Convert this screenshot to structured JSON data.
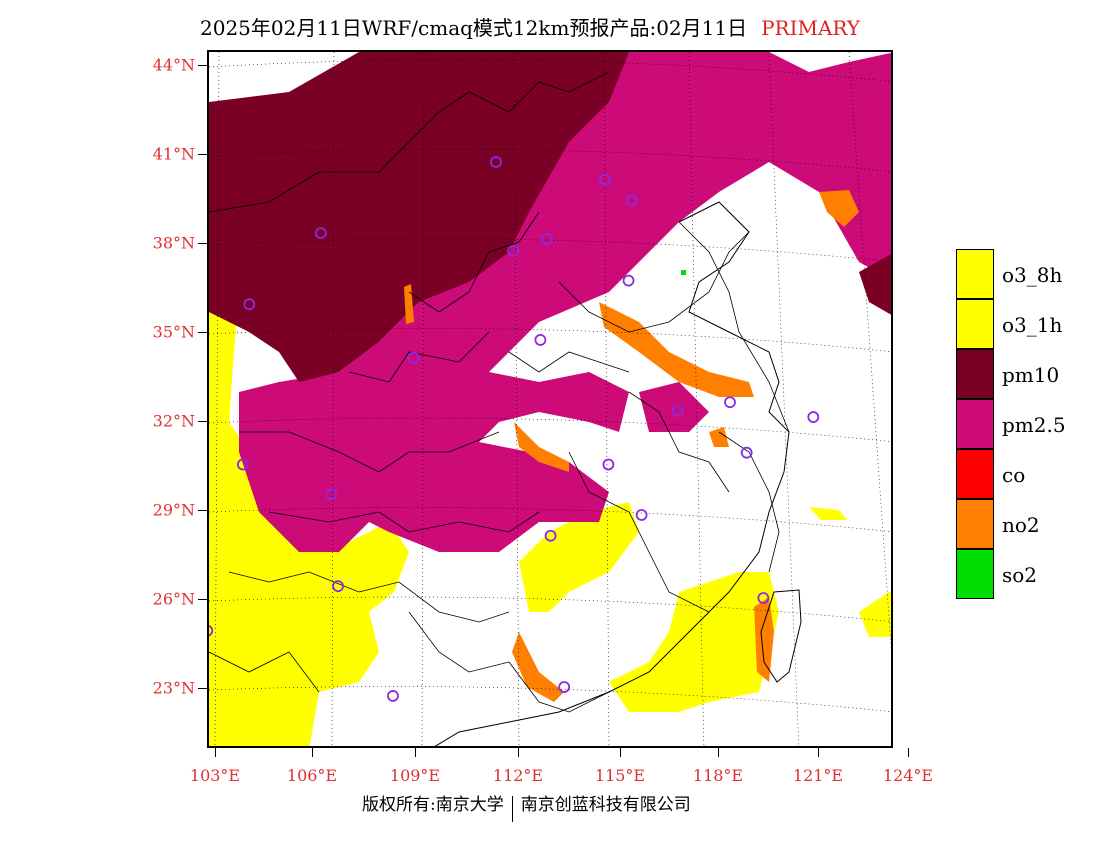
{
  "title": {
    "main": "2025年02月11日WRF/cmaq模式12km预报产品:02月11日",
    "tag": "PRIMARY"
  },
  "axes": {
    "lat_labels": [
      "44°N",
      "41°N",
      "38°N",
      "35°N",
      "32°N",
      "29°N",
      "26°N",
      "23°N"
    ],
    "lon_labels": [
      "103°E",
      "106°E",
      "109°E",
      "112°E",
      "115°E",
      "118°E",
      "121°E",
      "124°E"
    ],
    "lat_range": [
      21,
      44.5
    ],
    "lon_range": [
      102.8,
      124
    ]
  },
  "legend": [
    {
      "label": "o3_8h",
      "color": "#ffff00"
    },
    {
      "label": "o3_1h",
      "color": "#ffff00"
    },
    {
      "label": "pm10",
      "color": "#7a0026"
    },
    {
      "label": "pm2.5",
      "color": "#cc0a78"
    },
    {
      "label": "co",
      "color": "#ff0000"
    },
    {
      "label": "no2",
      "color": "#ff8000"
    },
    {
      "label": "so2",
      "color": "#00dd00"
    }
  ],
  "colors": {
    "o3": "#ffff00",
    "pm10": "#7a0026",
    "pm25": "#cc0a78",
    "no2": "#ff8000",
    "so2": "#00dd00",
    "station": "#8a2be2",
    "axis_label": "#e03030"
  },
  "stations": [
    {
      "lon": 111.3,
      "lat": 40.8
    },
    {
      "lon": 106.2,
      "lat": 38.4
    },
    {
      "lon": 104.0,
      "lat": 36.0
    },
    {
      "lon": 111.8,
      "lat": 37.8
    },
    {
      "lon": 112.8,
      "lat": 38.2
    },
    {
      "lon": 114.5,
      "lat": 40.2
    },
    {
      "lon": 115.3,
      "lat": 39.5
    },
    {
      "lon": 115.2,
      "lat": 36.8
    },
    {
      "lon": 112.6,
      "lat": 34.8
    },
    {
      "lon": 108.9,
      "lat": 34.2
    },
    {
      "lon": 116.7,
      "lat": 32.4
    },
    {
      "lon": 118.3,
      "lat": 32.7
    },
    {
      "lon": 120.8,
      "lat": 32.2
    },
    {
      "lon": 118.8,
      "lat": 31.0
    },
    {
      "lon": 103.8,
      "lat": 30.6
    },
    {
      "lon": 106.5,
      "lat": 29.6
    },
    {
      "lon": 114.6,
      "lat": 30.6
    },
    {
      "lon": 115.6,
      "lat": 28.9
    },
    {
      "lon": 112.9,
      "lat": 28.2
    },
    {
      "lon": 106.7,
      "lat": 26.5
    },
    {
      "lon": 102.7,
      "lat": 25.0
    },
    {
      "lon": 119.3,
      "lat": 26.1
    },
    {
      "lon": 113.3,
      "lat": 23.1
    },
    {
      "lon": 108.3,
      "lat": 22.8
    }
  ],
  "footer": {
    "left": "版权所有:南京大学",
    "right": "南京创蓝科技有限公司"
  }
}
